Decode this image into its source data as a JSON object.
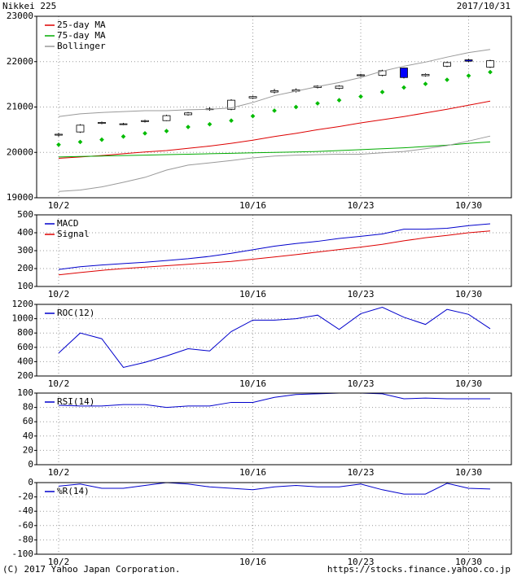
{
  "header": {
    "title": "Nikkei 225",
    "date": "2017/10/31"
  },
  "footer": {
    "copyright": "(C) 2017 Yahoo Japan Corporation.",
    "url": "https://stocks.finance.yahoo.co.jp"
  },
  "chart_data": [
    {
      "type": "candlestick",
      "categories": [
        "10/2",
        null,
        null,
        null,
        null,
        null,
        null,
        null,
        null,
        "10/16",
        null,
        null,
        null,
        null,
        "10/23",
        null,
        null,
        null,
        null,
        "10/30",
        null
      ],
      "open": [
        20380,
        20450,
        20640,
        20620,
        20680,
        20700,
        20830,
        20950,
        20950,
        21200,
        21330,
        21350,
        21430,
        21410,
        21690,
        21700,
        21860,
        21690,
        21900,
        22040,
        21880
      ],
      "high": [
        20430,
        20620,
        20680,
        20650,
        20720,
        20830,
        20890,
        20990,
        21170,
        21250,
        21400,
        21410,
        21480,
        21480,
        21730,
        21820,
        21870,
        21740,
        22000,
        22060,
        22040
      ],
      "low": [
        20350,
        20430,
        20620,
        20600,
        20660,
        20690,
        20810,
        20920,
        20930,
        21180,
        21300,
        21320,
        21410,
        21390,
        21670,
        21680,
        21630,
        21670,
        21880,
        21990,
        21860
      ],
      "close": [
        20400,
        20600,
        20660,
        20630,
        20700,
        20810,
        20870,
        20960,
        21150,
        21230,
        21360,
        21380,
        21460,
        21460,
        21710,
        21800,
        21650,
        21720,
        21980,
        22010,
        22020
      ],
      "up_color": "#ffffff",
      "down_color": "#0000ff",
      "series": [
        {
          "name": "25-day MA",
          "color": "#dd0000",
          "values": [
            19870,
            19900,
            19930,
            19970,
            20010,
            20040,
            20090,
            20140,
            20200,
            20270,
            20350,
            20420,
            20500,
            20570,
            20650,
            20720,
            20790,
            20870,
            20950,
            21040,
            21130
          ]
        },
        {
          "name": "75-day MA",
          "color": "#00aa00",
          "values": [
            19900,
            19910,
            19920,
            19930,
            19940,
            19950,
            19960,
            19970,
            19980,
            19990,
            20000,
            20010,
            20020,
            20040,
            20060,
            20080,
            20100,
            20130,
            20160,
            20200,
            20230
          ]
        },
        {
          "name": "Bollinger",
          "color": "#999999",
          "values": [
            20790,
            20850,
            20880,
            20900,
            20920,
            20920,
            20940,
            20950,
            20980,
            21100,
            21250,
            21350,
            21450,
            21540,
            21650,
            21790,
            21900,
            21990,
            22100,
            22200,
            22270
          ]
        },
        {
          "color": "#999999",
          "values": [
            19140,
            19170,
            19240,
            19340,
            19450,
            19610,
            19720,
            19770,
            19820,
            19880,
            19920,
            19940,
            19950,
            19960,
            19960,
            19990,
            20020,
            20080,
            20150,
            20250,
            20360
          ]
        },
        {
          "color": "#00bb00",
          "style": "dots",
          "values": [
            20170,
            20230,
            20280,
            20350,
            20420,
            20470,
            20560,
            20620,
            20700,
            20800,
            20920,
            21000,
            21080,
            21150,
            21230,
            21330,
            21430,
            21510,
            21600,
            21690,
            21770
          ]
        }
      ],
      "ylim": [
        19000,
        23000
      ],
      "yticks": [
        19000,
        20000,
        21000,
        22000,
        23000
      ],
      "grid": true,
      "legend": "upper left"
    },
    {
      "type": "line",
      "categories": [
        "10/2",
        null,
        null,
        null,
        null,
        null,
        null,
        null,
        null,
        "10/16",
        null,
        null,
        null,
        null,
        "10/23",
        null,
        null,
        null,
        null,
        "10/30",
        null
      ],
      "series": [
        {
          "name": "MACD",
          "color": "#0000cc",
          "values": [
            195,
            210,
            220,
            228,
            235,
            245,
            255,
            268,
            285,
            305,
            325,
            340,
            352,
            368,
            380,
            393,
            420,
            420,
            425,
            440,
            450
          ]
        },
        {
          "name": "Signal",
          "color": "#dd0000",
          "values": [
            165,
            178,
            190,
            200,
            208,
            216,
            224,
            232,
            240,
            252,
            265,
            278,
            292,
            306,
            320,
            335,
            355,
            372,
            385,
            400,
            410
          ]
        }
      ],
      "ylim": [
        100,
        500
      ],
      "yticks": [
        100,
        200,
        300,
        400,
        500
      ],
      "grid": true,
      "legend": "upper left"
    },
    {
      "type": "line",
      "categories": [
        "10/2",
        null,
        null,
        null,
        null,
        null,
        null,
        null,
        null,
        "10/16",
        null,
        null,
        null,
        null,
        "10/23",
        null,
        null,
        null,
        null,
        "10/30",
        null
      ],
      "series": [
        {
          "name": "ROC(12)",
          "color": "#0000cc",
          "values": [
            520,
            800,
            720,
            320,
            390,
            480,
            580,
            550,
            820,
            980,
            980,
            1000,
            1050,
            850,
            1070,
            1160,
            1020,
            920,
            1130,
            1060,
            860
          ]
        }
      ],
      "ylim": [
        200,
        1200
      ],
      "yticks": [
        200,
        400,
        600,
        800,
        1000,
        1200
      ],
      "grid": true,
      "legend": "upper left"
    },
    {
      "type": "line",
      "categories": [
        "10/2",
        null,
        null,
        null,
        null,
        null,
        null,
        null,
        null,
        "10/16",
        null,
        null,
        null,
        null,
        "10/23",
        null,
        null,
        null,
        null,
        "10/30",
        null
      ],
      "series": [
        {
          "name": "RSI(14)",
          "color": "#0000cc",
          "values": [
            83,
            82,
            82,
            84,
            84,
            80,
            82,
            82,
            87,
            87,
            94,
            98,
            99,
            100,
            100,
            99,
            92,
            93,
            92,
            92,
            92
          ]
        }
      ],
      "ylim": [
        0,
        100
      ],
      "yticks": [
        0,
        20,
        40,
        60,
        80,
        100
      ],
      "grid": true,
      "legend": "upper left"
    },
    {
      "type": "line",
      "categories": [
        "10/2",
        null,
        null,
        null,
        null,
        null,
        null,
        null,
        null,
        "10/16",
        null,
        null,
        null,
        null,
        "10/23",
        null,
        null,
        null,
        null,
        "10/30",
        null
      ],
      "series": [
        {
          "name": "%R(14)",
          "color": "#0000cc",
          "values": [
            -5,
            -2,
            -8,
            -8,
            -4,
            0,
            -2,
            -6,
            -8,
            -10,
            -6,
            -4,
            -6,
            -6,
            -2,
            -10,
            -16,
            -16,
            -1,
            -8,
            -9
          ]
        }
      ],
      "ylim": [
        -100,
        0
      ],
      "yticks": [
        -100,
        -80,
        -60,
        -40,
        -20,
        0
      ],
      "grid": true,
      "legend": "upper left"
    }
  ]
}
